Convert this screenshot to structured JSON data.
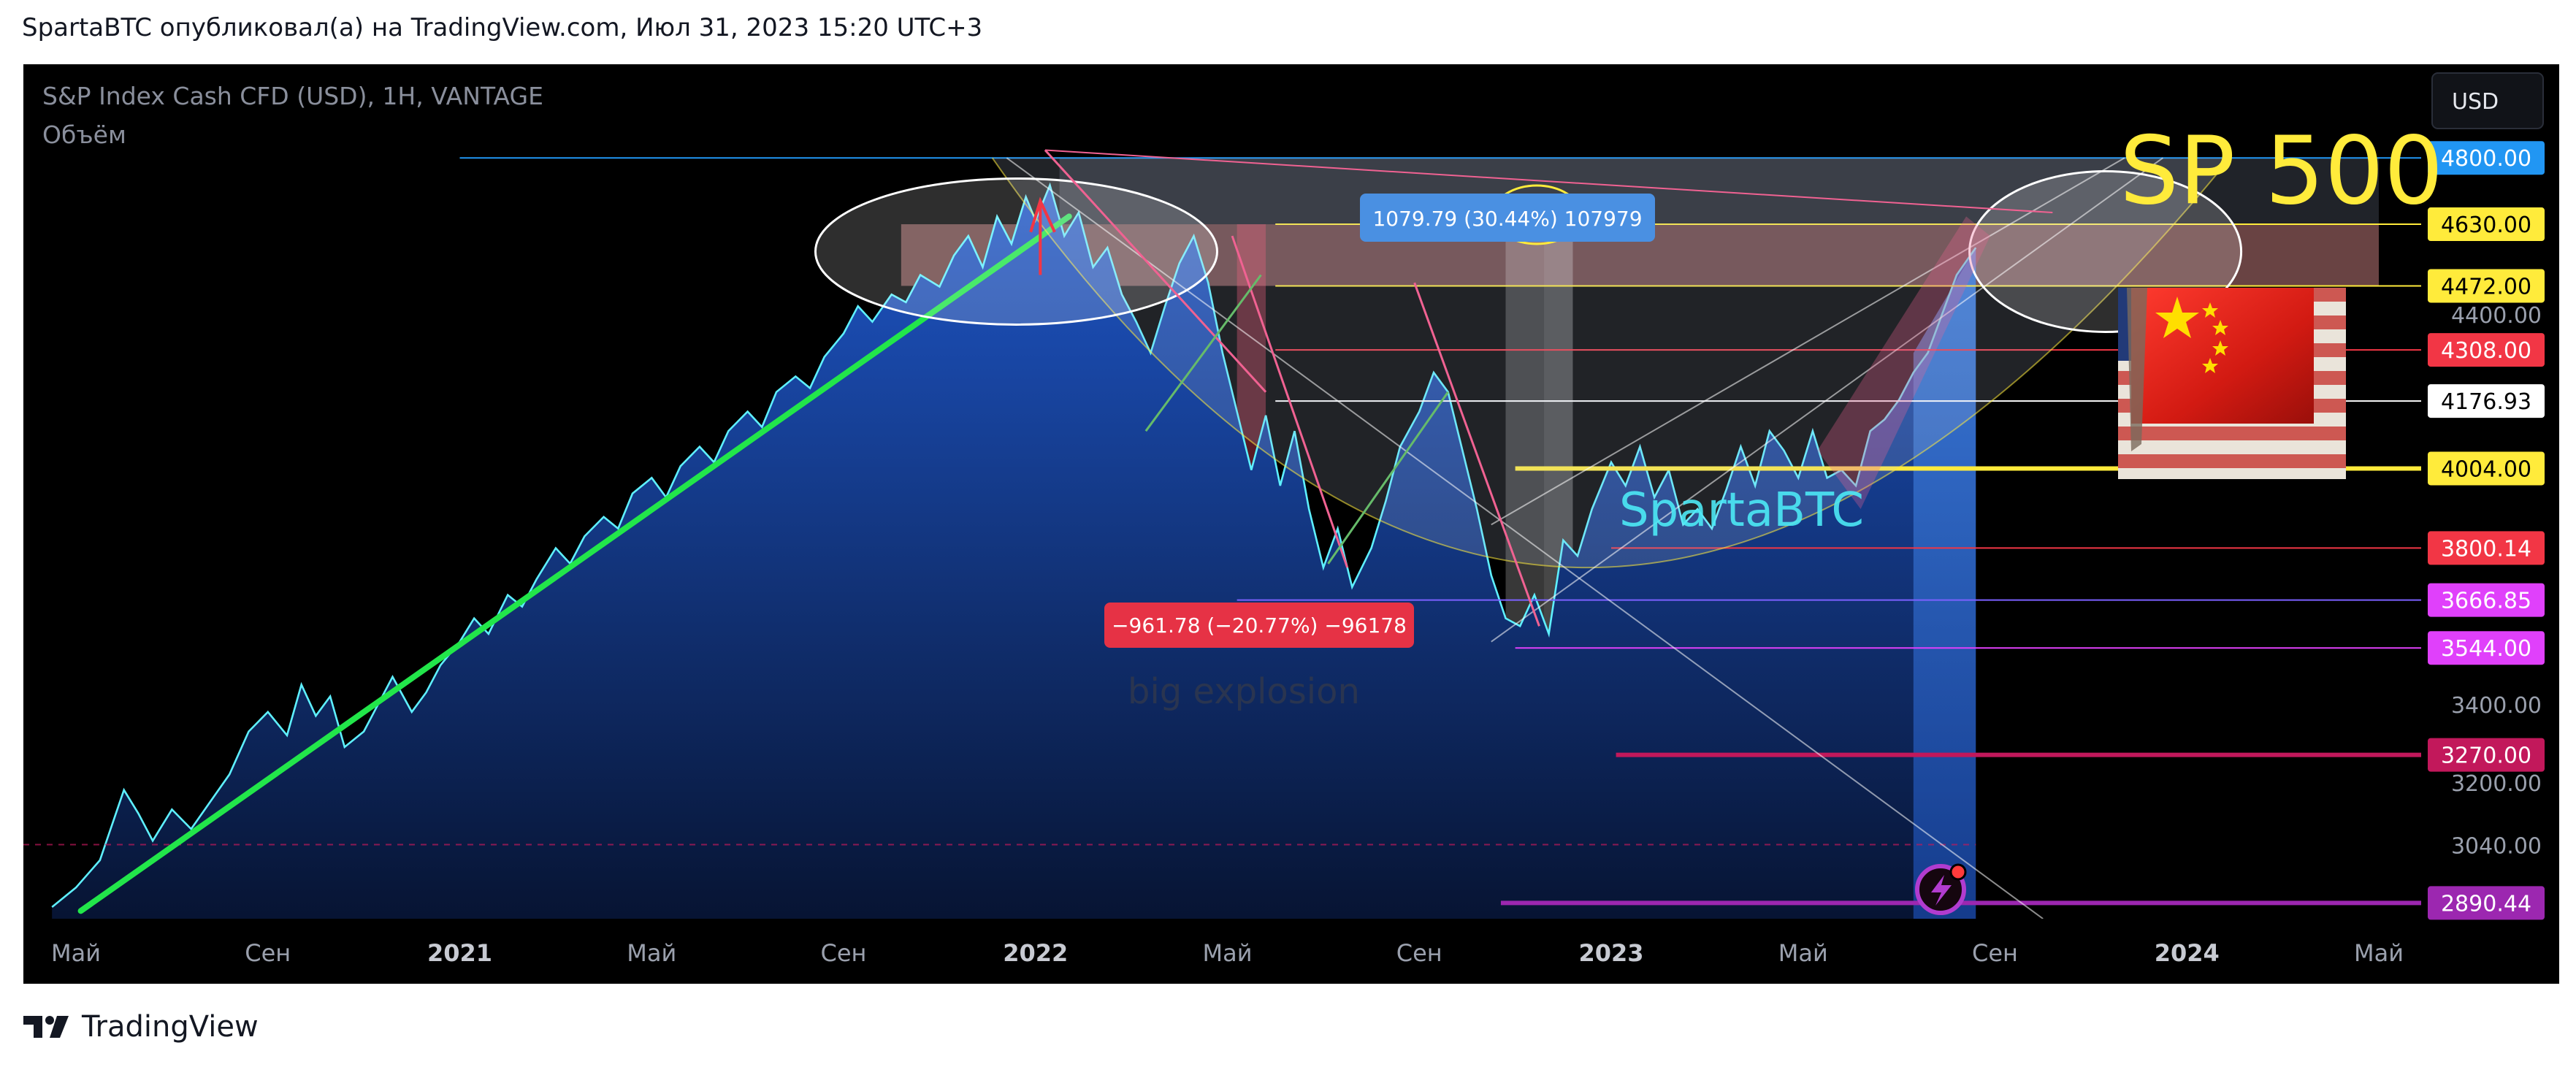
{
  "header": {
    "publisher": "SpartaBTC опубликовал(а) на TradingView.com, Июл 31, 2023 15:20 UTC+3"
  },
  "symbol": {
    "name": "S&P Index Cash CFD (USD), 1H, VANTAGE",
    "volume_label": "Объём"
  },
  "currency_button": "USD",
  "overlay": {
    "title": "SP 500",
    "watermark": "SpartaBTC",
    "note": "big explosion",
    "measure_up": "1079.79 (30.44%) 107979",
    "measure_down": "−961.78 (−20.77%) −96178"
  },
  "footer": {
    "brand": "TradingView"
  },
  "icons": {
    "logo": "tradingview-logo-icon",
    "replay": "lightning-bolt-icon",
    "flag": "china-usa-flag-image"
  },
  "colors": {
    "background": "#000000",
    "price_line": "#5ef0ff",
    "area_top": "#1e56c8",
    "area_bottom": "#071433",
    "trendline": "#22e64a",
    "title": "#ffeb3b",
    "watermark": "#4de9f5",
    "purple": "#9c27b0"
  },
  "chart_data": {
    "type": "area",
    "title": "S&P Index Cash CFD (USD), 1H, VANTAGE",
    "x_ticks": [
      {
        "label": "Май",
        "t": 0
      },
      {
        "label": "Сен",
        "t": 4
      },
      {
        "label": "2021",
        "t": 8,
        "bold": true
      },
      {
        "label": "Май",
        "t": 12
      },
      {
        "label": "Сен",
        "t": 16
      },
      {
        "label": "2022",
        "t": 20,
        "bold": true
      },
      {
        "label": "Май",
        "t": 24
      },
      {
        "label": "Сен",
        "t": 28
      },
      {
        "label": "2023",
        "t": 32,
        "bold": true
      },
      {
        "label": "Май",
        "t": 36
      },
      {
        "label": "Сен",
        "t": 40
      },
      {
        "label": "2024",
        "t": 44,
        "bold": true
      },
      {
        "label": "Май",
        "t": 48
      }
    ],
    "y_range": [
      2850,
      5040
    ],
    "y_ticks": [
      3040,
      3200,
      3400,
      4400
    ],
    "price_labels": [
      {
        "value": 4800.0,
        "label": "4800.00",
        "bg": "#2196f3",
        "fg": "#ffffff"
      },
      {
        "value": 4630.0,
        "label": "4630.00",
        "bg": "#ffeb3b",
        "fg": "#000000"
      },
      {
        "value": 4472.0,
        "label": "4472.00",
        "bg": "#ffeb3b",
        "fg": "#000000"
      },
      {
        "value": 4308.0,
        "label": "4308.00",
        "bg": "#f23645",
        "fg": "#ffffff"
      },
      {
        "value": 4176.93,
        "label": "4176.93",
        "bg": "#ffffff",
        "fg": "#000000"
      },
      {
        "value": 4004.0,
        "label": "4004.00",
        "bg": "#ffeb3b",
        "fg": "#000000"
      },
      {
        "value": 3800.14,
        "label": "3800.14",
        "bg": "#f23645",
        "fg": "#ffffff"
      },
      {
        "value": 3666.85,
        "label": "3666.85",
        "bg": "#e040fb",
        "fg": "#ffffff"
      },
      {
        "value": 3544.0,
        "label": "3544.00",
        "bg": "#e040fb",
        "fg": "#ffffff"
      },
      {
        "value": 3270.0,
        "label": "3270.00",
        "bg": "#c2185b",
        "fg": "#ffffff"
      },
      {
        "value": 2890.44,
        "label": "2890.44",
        "bg": "#9c27b0",
        "fg": "#ffffff"
      }
    ],
    "levels": [
      {
        "value": 4800,
        "color": "#2196f3",
        "t0": 8,
        "t1": 48
      },
      {
        "value": 4630,
        "color": "#ffeb3b",
        "t0": 25,
        "t1": 48
      },
      {
        "value": 4472,
        "color": "#ffeb3b",
        "t0": 25,
        "t1": 48
      },
      {
        "value": 4308,
        "color": "#f23645",
        "t0": 25,
        "t1": 48
      },
      {
        "value": 4176.93,
        "color": "#ffffff",
        "t0": 25,
        "t1": 48
      },
      {
        "value": 4004,
        "color": "#ffeb3b",
        "t0": 30,
        "t1": 48,
        "thick": true
      },
      {
        "value": 3800.14,
        "color": "#f23645",
        "t0": 32,
        "t1": 48
      },
      {
        "value": 3666.85,
        "color": "#7b61ff",
        "t0": 24.2,
        "t1": 48
      },
      {
        "value": 3544,
        "color": "#e040fb",
        "t0": 30,
        "t1": 48
      },
      {
        "value": 3270,
        "color": "#c2185b",
        "t0": 32.1,
        "t1": 48,
        "thick": true
      },
      {
        "value": 2890.44,
        "color": "#9c27b0",
        "t0": 29.7,
        "t1": 48,
        "thick": true
      }
    ],
    "series": [
      {
        "name": "",
        "points": [
          [
            -0.5,
            2880
          ],
          [
            0,
            2930
          ],
          [
            0.5,
            3000
          ],
          [
            1,
            3180
          ],
          [
            1.3,
            3120
          ],
          [
            1.6,
            3050
          ],
          [
            2,
            3130
          ],
          [
            2.4,
            3080
          ],
          [
            2.8,
            3150
          ],
          [
            3.2,
            3220
          ],
          [
            3.6,
            3330
          ],
          [
            4,
            3380
          ],
          [
            4.4,
            3320
          ],
          [
            4.7,
            3450
          ],
          [
            5,
            3370
          ],
          [
            5.3,
            3420
          ],
          [
            5.6,
            3290
          ],
          [
            6,
            3330
          ],
          [
            6.3,
            3400
          ],
          [
            6.6,
            3470
          ],
          [
            7,
            3380
          ],
          [
            7.3,
            3430
          ],
          [
            7.6,
            3500
          ],
          [
            8,
            3560
          ],
          [
            8.3,
            3620
          ],
          [
            8.6,
            3580
          ],
          [
            9,
            3680
          ],
          [
            9.3,
            3650
          ],
          [
            9.6,
            3720
          ],
          [
            10,
            3800
          ],
          [
            10.3,
            3760
          ],
          [
            10.6,
            3830
          ],
          [
            11,
            3880
          ],
          [
            11.3,
            3850
          ],
          [
            11.6,
            3940
          ],
          [
            12,
            3980
          ],
          [
            12.3,
            3930
          ],
          [
            12.6,
            4010
          ],
          [
            13,
            4060
          ],
          [
            13.3,
            4020
          ],
          [
            13.6,
            4100
          ],
          [
            14,
            4150
          ],
          [
            14.3,
            4110
          ],
          [
            14.6,
            4200
          ],
          [
            15,
            4240
          ],
          [
            15.3,
            4210
          ],
          [
            15.6,
            4290
          ],
          [
            16,
            4350
          ],
          [
            16.3,
            4420
          ],
          [
            16.6,
            4380
          ],
          [
            17,
            4450
          ],
          [
            17.3,
            4430
          ],
          [
            17.6,
            4500
          ],
          [
            18,
            4470
          ],
          [
            18.3,
            4550
          ],
          [
            18.6,
            4600
          ],
          [
            18.9,
            4520
          ],
          [
            19.2,
            4650
          ],
          [
            19.5,
            4580
          ],
          [
            19.8,
            4700
          ],
          [
            20,
            4640
          ],
          [
            20.3,
            4730
          ],
          [
            20.6,
            4600
          ],
          [
            20.9,
            4660
          ],
          [
            21.2,
            4520
          ],
          [
            21.5,
            4570
          ],
          [
            21.8,
            4450
          ],
          [
            22.1,
            4380
          ],
          [
            22.4,
            4300
          ],
          [
            22.7,
            4420
          ],
          [
            23,
            4530
          ],
          [
            23.3,
            4600
          ],
          [
            23.6,
            4480
          ],
          [
            23.9,
            4300
          ],
          [
            24.2,
            4150
          ],
          [
            24.5,
            4000
          ],
          [
            24.8,
            4140
          ],
          [
            25.1,
            3960
          ],
          [
            25.4,
            4100
          ],
          [
            25.7,
            3900
          ],
          [
            26,
            3750
          ],
          [
            26.3,
            3850
          ],
          [
            26.6,
            3700
          ],
          [
            27,
            3800
          ],
          [
            27.3,
            3920
          ],
          [
            27.6,
            4060
          ],
          [
            28,
            4150
          ],
          [
            28.3,
            4250
          ],
          [
            28.6,
            4200
          ],
          [
            28.9,
            4050
          ],
          [
            29.2,
            3900
          ],
          [
            29.5,
            3730
          ],
          [
            29.8,
            3620
          ],
          [
            30.1,
            3600
          ],
          [
            30.4,
            3680
          ],
          [
            30.7,
            3580
          ],
          [
            31,
            3820
          ],
          [
            31.3,
            3780
          ],
          [
            31.6,
            3900
          ],
          [
            32,
            4020
          ],
          [
            32.3,
            3960
          ],
          [
            32.6,
            4060
          ],
          [
            32.9,
            3930
          ],
          [
            33.2,
            4000
          ],
          [
            33.5,
            3860
          ],
          [
            33.8,
            3900
          ],
          [
            34.1,
            3850
          ],
          [
            34.4,
            3950
          ],
          [
            34.7,
            4060
          ],
          [
            35,
            3960
          ],
          [
            35.3,
            4100
          ],
          [
            35.6,
            4050
          ],
          [
            35.9,
            3980
          ],
          [
            36.2,
            4100
          ],
          [
            36.5,
            3980
          ],
          [
            36.8,
            4000
          ],
          [
            37.1,
            3960
          ],
          [
            37.4,
            4100
          ],
          [
            37.7,
            4130
          ],
          [
            38,
            4180
          ],
          [
            38.3,
            4250
          ],
          [
            38.6,
            4300
          ],
          [
            38.9,
            4400
          ],
          [
            39.2,
            4500
          ],
          [
            39.6,
            4570
          ]
        ]
      }
    ]
  }
}
